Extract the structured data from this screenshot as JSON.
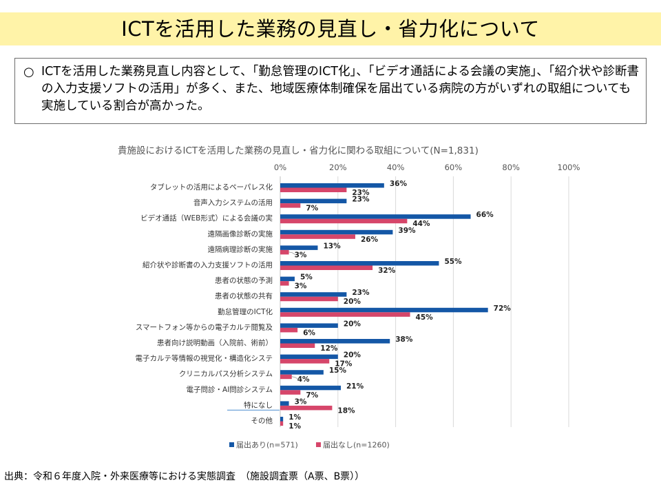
{
  "header": {
    "title": "ICTを活用した業務の見直し・省力化について"
  },
  "summary": {
    "bullet": "○",
    "text": "ICTを活用した業務見直し内容として、「勤怠管理のICT化」、「ビデオ通話による会議の実施」、「紹介状や診断書の入力支援ソフトの活用」が多く、また、地域医療体制確保を届出ている病院の方がいずれの取組についても実施している割合が高かった。"
  },
  "chart_data": {
    "type": "bar",
    "orientation": "horizontal",
    "title": "貴施設におけるICTを活用した業務の見直し・省力化に関わる取組について(N=1,831)",
    "xlim": [
      0,
      100
    ],
    "x_ticks": [
      "0%",
      "20%",
      "40%",
      "60%",
      "80%",
      "100%"
    ],
    "grid": true,
    "legend_position": "bottom",
    "categories": [
      "タブレットの活用によるペーパレス化",
      "音声入力システムの活用",
      "ビデオ通話（WEB形式）による会議の実",
      "遠隔画像診断の実施",
      "遠隔病理診断の実施",
      "紹介状や診断書の入力支援ソフトの活用",
      "患者の状態の予測",
      "患者の状態の共有",
      "勤怠管理のICT化",
      "スマートフォン等からの電子カルテ閲覧及",
      "患者向け説明動画（入院前、術前）",
      "電子カルテ等情報の視覚化・構造化システ",
      "クリニカルパス分析システム",
      "電子問診・AI問診システム",
      "特になし",
      "その他"
    ],
    "series": [
      {
        "name": "届出あり(n=571)",
        "color": "#1457a6",
        "values": [
          36,
          23,
          66,
          39,
          13,
          55,
          5,
          23,
          72,
          20,
          38,
          20,
          15,
          21,
          3,
          1
        ],
        "labels": [
          "36%",
          "23%",
          "66%",
          "39%",
          "13%",
          "55%",
          "5%",
          "23%",
          "72%",
          "20%",
          "38%",
          "20%",
          "15%",
          "21%",
          "3%",
          "1%"
        ]
      },
      {
        "name": "届出なし(n=1260)",
        "color": "#d6466a",
        "values": [
          23,
          7,
          44,
          26,
          3,
          32,
          3,
          20,
          45,
          6,
          12,
          17,
          4,
          7,
          18,
          1
        ],
        "labels": [
          "23%",
          "7%",
          "44%",
          "26%",
          "3%",
          "32%",
          "3%",
          "20%",
          "45%",
          "6%",
          "12%",
          "17%",
          "4%",
          "7%",
          "18%",
          "1%"
        ]
      }
    ]
  },
  "source": {
    "text": "出典：令和６年度入院・外来医療等における実態調査　（施設調査票（A票、B票））"
  }
}
